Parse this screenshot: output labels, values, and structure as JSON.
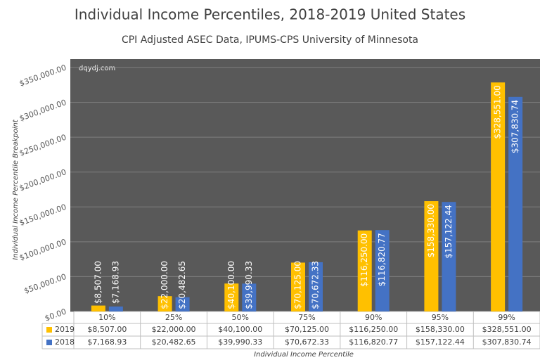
{
  "chart_data": {
    "type": "bar",
    "title": "Individual Income Percentiles, 2018-2019 United States",
    "subtitle": "CPI Adjusted ASEC Data, IPUMS-CPS University of Minnesota",
    "watermark": "dqydj.com",
    "y_axis_label": "Individual Income Percentile Breakpoint",
    "x_axis_label": "Individual Income Percentile",
    "categories": [
      "10%",
      "25%",
      "50%",
      "75%",
      "90%",
      "95%",
      "99%"
    ],
    "series": [
      {
        "name": "2019",
        "color": "#ffc000",
        "values": [
          8507,
          22000,
          40100,
          70125,
          116250,
          158330,
          328551
        ],
        "value_labels": [
          "$8,507.00",
          "$22,000.00",
          "$40,100.00",
          "$70,125.00",
          "$116,250.00",
          "$158,330.00",
          "$328,551.00"
        ]
      },
      {
        "name": "2018",
        "color": "#4472c4",
        "values": [
          7168.93,
          20482.65,
          39990.33,
          70672.33,
          116820.77,
          157122.44,
          307830.74
        ],
        "value_labels": [
          "$7,168.93",
          "$20,482.65",
          "$39,990.33",
          "$70,672.33",
          "$116,820.77",
          "$157,122.44",
          "$307,830.74"
        ]
      }
    ],
    "ylim": [
      0,
      350000
    ],
    "yticks": [
      {
        "value": 0,
        "label": "$0.00"
      },
      {
        "value": 50000,
        "label": "$50,000.00"
      },
      {
        "value": 100000,
        "label": "$100,000.00"
      },
      {
        "value": 150000,
        "label": "$150,000.00"
      },
      {
        "value": 200000,
        "label": "$200,000.00"
      },
      {
        "value": 250000,
        "label": "$250,000.00"
      },
      {
        "value": 300000,
        "label": "$300,000.00"
      },
      {
        "value": 350000,
        "label": "$350,000.00"
      }
    ],
    "grid": true,
    "data_table": true
  }
}
